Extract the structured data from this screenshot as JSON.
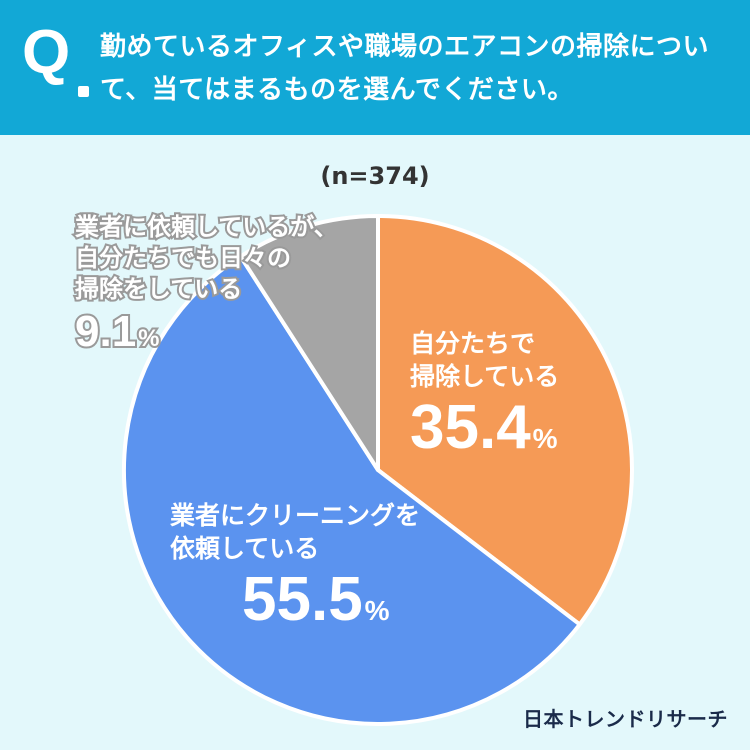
{
  "header": {
    "q_letter": "Q",
    "question": "勤めているオフィスや職場のエアコンの掃除について、当てはまるものを選んでください。"
  },
  "colors": {
    "header_bg": "#12a8d6",
    "page_bg": "#e3f8fb",
    "orange": "#f59a56",
    "blue": "#5b93ef",
    "gray": "#a5a5a5"
  },
  "chart_data": {
    "type": "pie",
    "sample_size": "(n=374)",
    "slices": [
      {
        "label": "自分たちで掃除している",
        "line1": "自分たちで",
        "line2": "掃除している",
        "value": 35.4,
        "value_text": "35.4",
        "unit": "%",
        "color": "#f59a56"
      },
      {
        "label": "業者にクリーニングを依頼している",
        "line1": "業者にクリーニングを",
        "line2": "依頼している",
        "value": 55.5,
        "value_text": "55.5",
        "unit": "%",
        "color": "#5b93ef"
      },
      {
        "label": "業者に依頼しているが、自分たちでも日々の掃除をしている",
        "line1": "業者に依頼しているが、",
        "line2": "自分たちでも日々の",
        "line3": "掃除をしている",
        "value": 9.1,
        "value_text": "9.1",
        "unit": "%",
        "color": "#a5a5a5"
      }
    ]
  },
  "brand": "日本トレンドリサーチ"
}
